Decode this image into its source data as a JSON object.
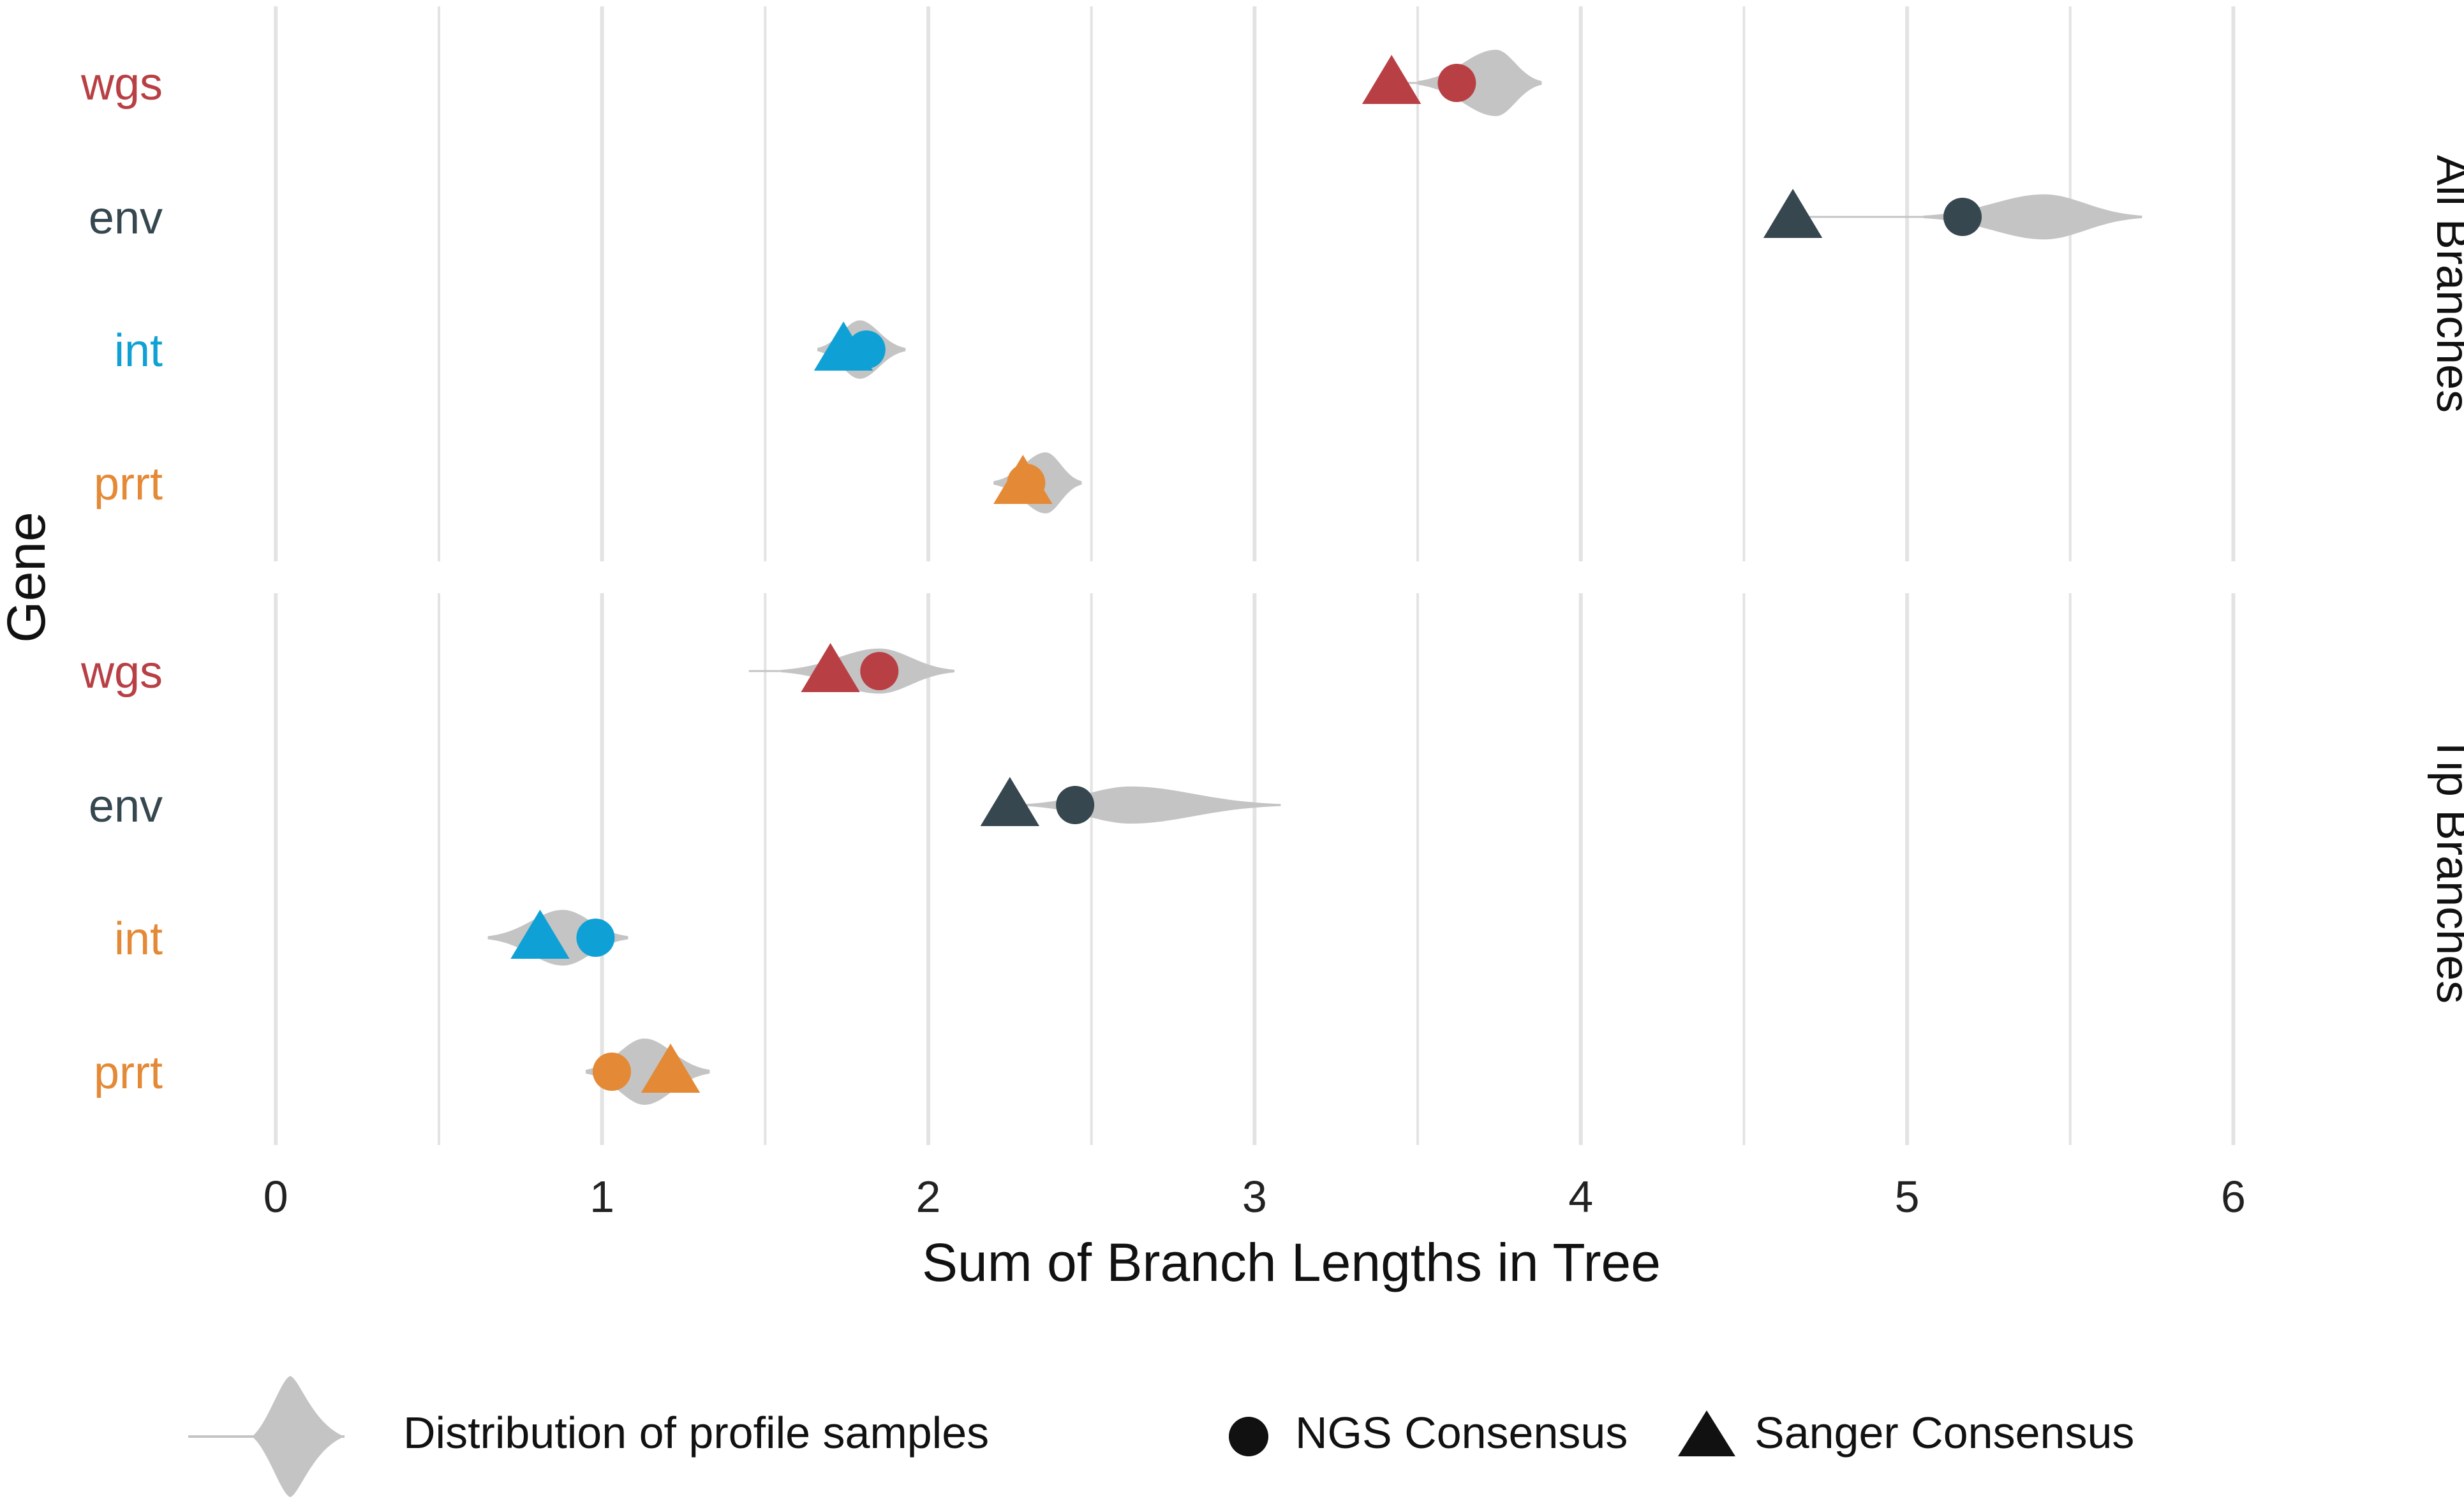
{
  "chart_data": {
    "type": "violin",
    "xlabel": "Sum of Branch Lengths in Tree",
    "ylabel": "Gene",
    "xlim": [
      -0.2,
      6.4
    ],
    "xticks": [
      0,
      1,
      2,
      3,
      4,
      5,
      6
    ],
    "grid": true,
    "categories": [
      "wgs",
      "env",
      "int",
      "prrt"
    ],
    "marker_colors": {
      "wgs": "#B84045",
      "env": "#36474F",
      "int": "#0FA1D6",
      "prrt": "#E48935"
    },
    "label_colors": {
      "all": {
        "wgs": "#B84045",
        "env": "#36474F",
        "int": "#0FA1D6",
        "prrt": "#E48935"
      },
      "tip": {
        "wgs": "#B84045",
        "env": "#36474F",
        "int": "#E48935",
        "prrt": "#E48935"
      }
    },
    "violin_color": "#C4C4C4",
    "facets": [
      {
        "label": "All Branches",
        "rows": [
          {
            "gene": "wgs",
            "ngs": 3.62,
            "sanger": 3.42,
            "violin": {
              "min": 3.5,
              "max": 3.88,
              "mode": 3.74,
              "width": 0.5,
              "tail_start": 3.42
            }
          },
          {
            "gene": "env",
            "ngs": 5.17,
            "sanger": 4.65,
            "violin": {
              "min": 5.05,
              "max": 5.72,
              "mode": 5.42,
              "width": 0.34,
              "tail_start": 4.65
            }
          },
          {
            "gene": "int",
            "ngs": 1.81,
            "sanger": 1.74,
            "violin": {
              "min": 1.66,
              "max": 1.93,
              "mode": 1.79,
              "width": 0.44,
              "tail_start": 1.66
            }
          },
          {
            "gene": "prrt",
            "ngs": 2.3,
            "sanger": 2.29,
            "violin": {
              "min": 2.2,
              "max": 2.47,
              "mode": 2.36,
              "width": 0.46,
              "tail_start": 2.2
            }
          }
        ]
      },
      {
        "label": "Tip Branches",
        "rows": [
          {
            "gene": "wgs",
            "ngs": 1.85,
            "sanger": 1.7,
            "violin": {
              "min": 1.55,
              "max": 2.08,
              "mode": 1.85,
              "width": 0.34,
              "tail_start": 1.45
            }
          },
          {
            "gene": "env",
            "ngs": 2.45,
            "sanger": 2.25,
            "violin": {
              "min": 2.3,
              "max": 3.08,
              "mode": 2.62,
              "width": 0.28,
              "tail_start": 2.25
            }
          },
          {
            "gene": "int",
            "ngs": 0.98,
            "sanger": 0.81,
            "violin": {
              "min": 0.65,
              "max": 1.08,
              "mode": 0.88,
              "width": 0.42,
              "tail_start": 0.65
            }
          },
          {
            "gene": "prrt",
            "ngs": 1.03,
            "sanger": 1.21,
            "violin": {
              "min": 0.95,
              "max": 1.33,
              "mode": 1.13,
              "width": 0.5,
              "tail_start": 0.95
            }
          }
        ]
      }
    ],
    "legend": {
      "placement": "bottom",
      "distribution": "Distribution of profile samples",
      "ngs": "NGS Consensus",
      "sanger": "Sanger Consensus"
    }
  }
}
